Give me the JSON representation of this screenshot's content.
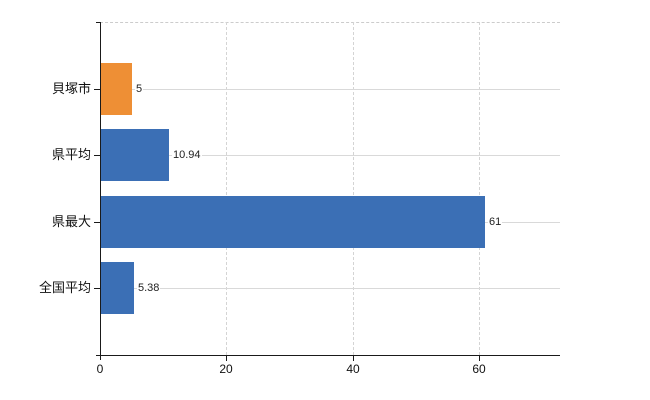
{
  "chart_data": {
    "type": "bar",
    "orientation": "horizontal",
    "title": "",
    "xlabel": "",
    "ylabel": "",
    "categories": [
      "貝塚市",
      "県平均",
      "県最大",
      "全国平均"
    ],
    "values": [
      5,
      10.94,
      61,
      5.38
    ],
    "value_labels": [
      "5",
      "10.94",
      "61",
      "5.38"
    ],
    "bar_colors": [
      "#EE8F35",
      "#3B6FB5",
      "#3B6FB5",
      "#3B6FB5"
    ],
    "xlim": [
      0,
      72.8
    ],
    "xticks": [
      0,
      20,
      40,
      60
    ],
    "xtick_labels": [
      "0",
      "20",
      "40",
      "60"
    ],
    "grid": "on",
    "legend": "none",
    "colors": {
      "highlight_orange": "#EE8F35",
      "series_blue": "#3B6FB5",
      "gridline": "#d9d9d9",
      "axis": "#1a1a1a",
      "background": "#ffffff"
    }
  }
}
